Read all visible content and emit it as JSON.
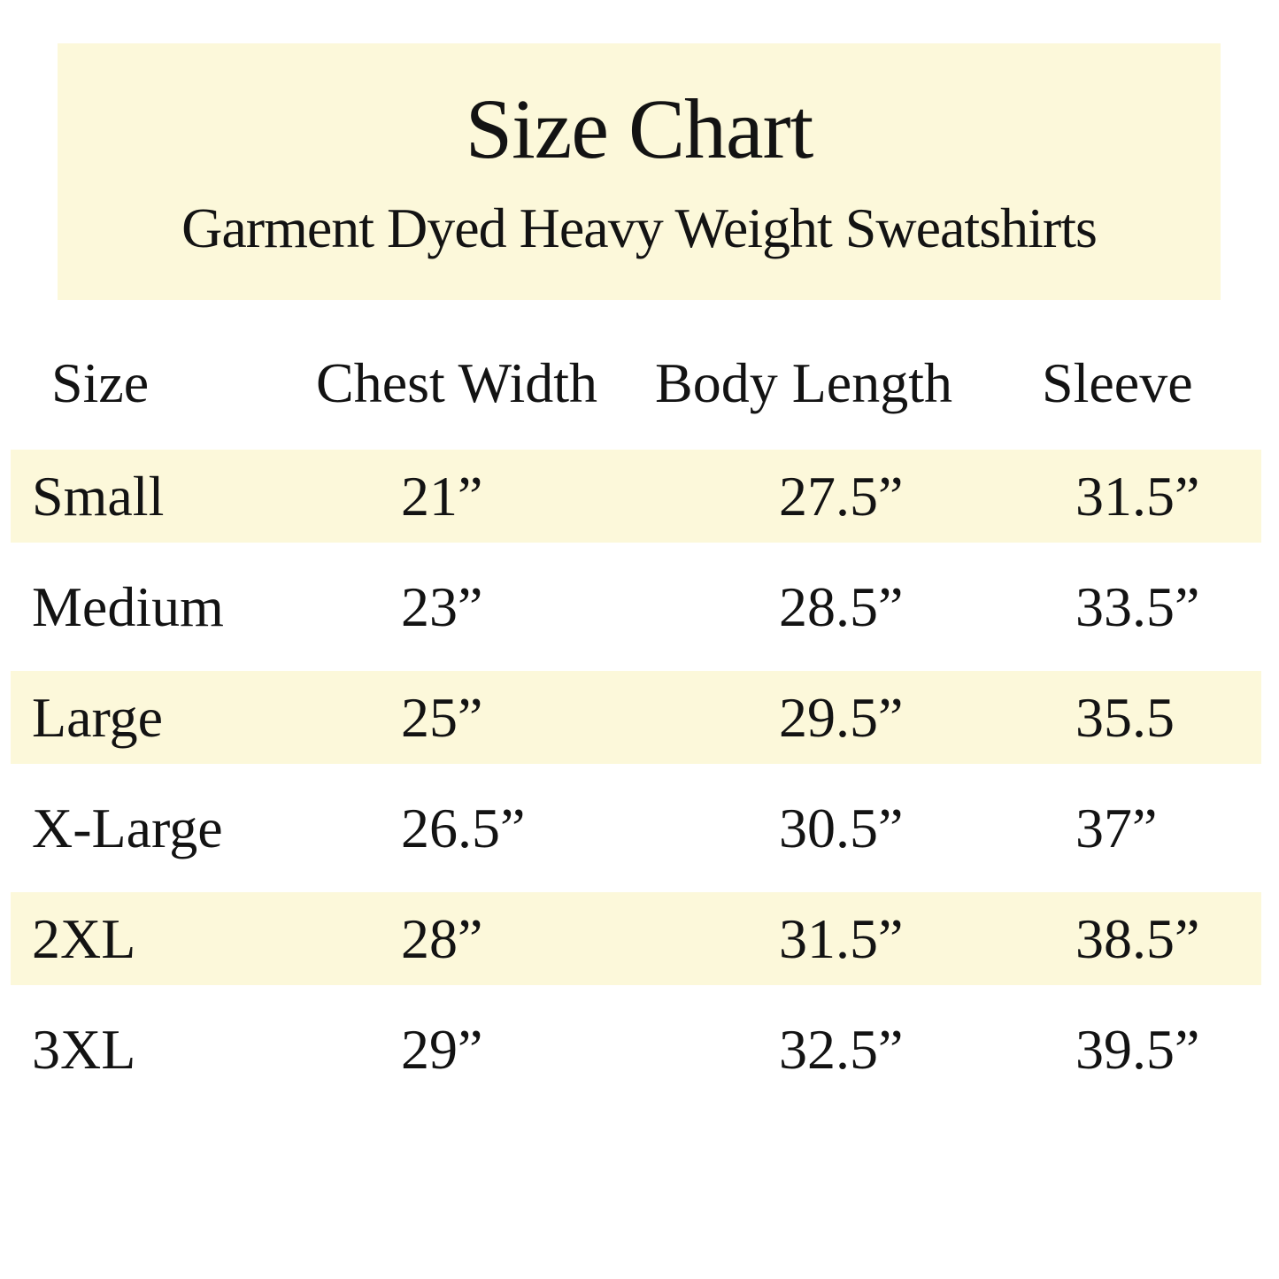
{
  "banner": {
    "title": "Size Chart",
    "subtitle": "Garment Dyed Heavy Weight Sweatshirts"
  },
  "table": {
    "columns": [
      "Size",
      "Chest Width",
      "Body Length",
      "Sleeve"
    ],
    "rows": [
      {
        "size": "Small",
        "chest_width": "21”",
        "body_length": "27.5”",
        "sleeve": "31.5”",
        "highlighted": true
      },
      {
        "size": "Medium",
        "chest_width": "23”",
        "body_length": "28.5”",
        "sleeve": "33.5”",
        "highlighted": false
      },
      {
        "size": "Large",
        "chest_width": "25”",
        "body_length": "29.5”",
        "sleeve": "35.5",
        "highlighted": true
      },
      {
        "size": "X-Large",
        "chest_width": "26.5”",
        "body_length": "30.5”",
        "sleeve": "37”",
        "highlighted": false
      },
      {
        "size": "2XL",
        "chest_width": "28”",
        "body_length": "31.5”",
        "sleeve": "38.5”",
        "highlighted": true
      },
      {
        "size": "3XL",
        "chest_width": "29”",
        "body_length": "32.5”",
        "sleeve": "39.5”",
        "highlighted": false
      }
    ]
  },
  "colors": {
    "highlight_band": "#FCF8DA",
    "banner_background": "#FCF8DA",
    "text": "#131313",
    "page_background": "#FFFFFF"
  }
}
